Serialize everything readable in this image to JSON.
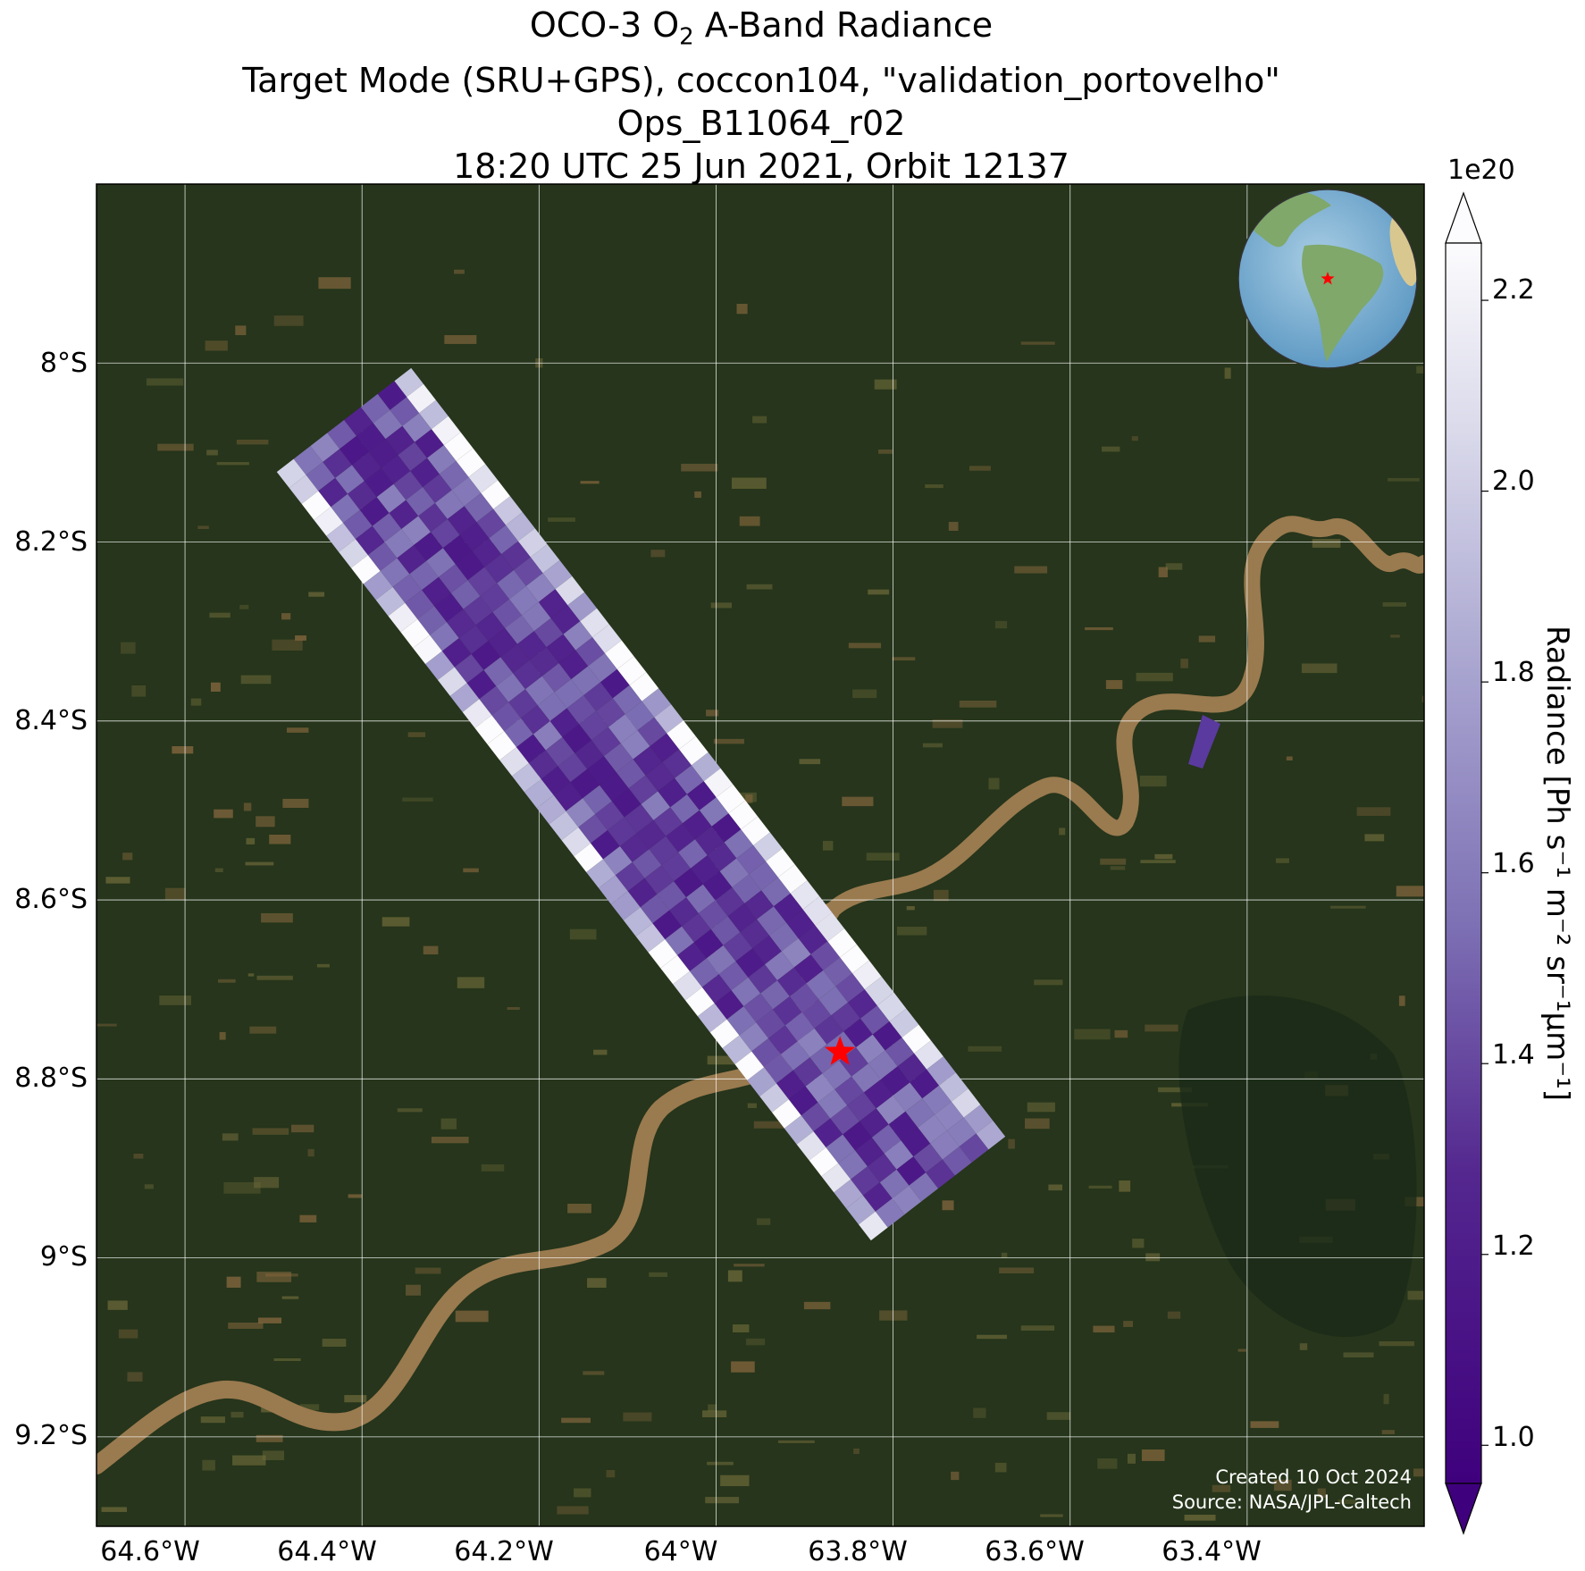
{
  "title": {
    "line1_prefix": "OCO-3 O",
    "line1_sub": "2",
    "line1_suffix": " A-Band Radiance",
    "line2": "Target Mode (SRU+GPS), coccon104, \"validation_portovelho\"",
    "line3": "Ops_B11064_r02",
    "line4": "18:20 UTC 25 Jun 2021, Orbit 12137"
  },
  "map": {
    "lon_ticks": [
      "64.6°W",
      "64.4°W",
      "64.2°W",
      "64°W",
      "63.8°W",
      "63.6°W",
      "63.4°W"
    ],
    "lat_ticks": [
      "8°S",
      "8.2°S",
      "8.4°S",
      "8.6°S",
      "8.8°S",
      "9°S",
      "9.2°S"
    ],
    "lon_range": [
      -64.7,
      -63.2
    ],
    "lat_range": [
      -9.3,
      -7.8
    ],
    "basemap": "satellite imagery (rainforest, river)",
    "target_marker": {
      "symbol": "red-star",
      "lon": -63.86,
      "lat": -8.77,
      "color": "#ff0000"
    },
    "inset": "globe-showing-south-america-with-red-star",
    "credit_line1": "Created 10 Oct 2024",
    "credit_line2": "Source: NASA/JPL-Caltech"
  },
  "colorbar": {
    "label": "Radiance [Ph s⁻¹ m⁻² sr⁻¹μm⁻¹]",
    "multiplier": "1e20",
    "ticks": [
      "1.0",
      "1.2",
      "1.4",
      "1.6",
      "1.8",
      "2.0",
      "2.2"
    ],
    "range": [
      0.96,
      2.26
    ],
    "colormap": "Purples_r",
    "color_low": "#3f007d",
    "color_high": "#fcfbfd",
    "extend": "both"
  },
  "colors": {
    "forest": "#26351b",
    "river": "#9a7a4f",
    "clearing": "#8a6a40",
    "grid": "#ffffff",
    "star": "#ff0000"
  }
}
